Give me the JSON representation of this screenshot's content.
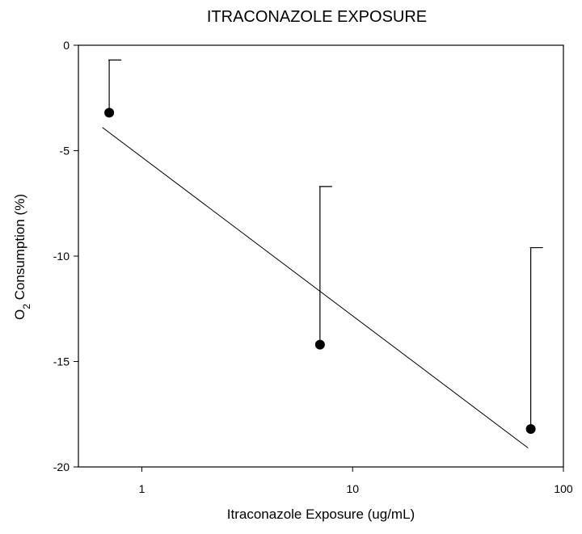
{
  "chart_data": {
    "type": "scatter",
    "title": "ITRACONAZOLE EXPOSURE",
    "xlabel": "Itraconazole Exposure (ug/mL)",
    "ylabel_main": "O",
    "ylabel_sub": "2",
    "ylabel_rest": " Consumption (%)",
    "x_scale": "log",
    "xlim": [
      0.5,
      100
    ],
    "ylim": [
      -20,
      0
    ],
    "x_ticks": [
      {
        "value": 1,
        "label": "1"
      },
      {
        "value": 10,
        "label": "10"
      },
      {
        "value": 100,
        "label": "100"
      }
    ],
    "y_ticks": [
      {
        "value": 0,
        "label": "0"
      },
      {
        "value": -5,
        "label": "-5"
      },
      {
        "value": -10,
        "label": "-10"
      },
      {
        "value": -15,
        "label": "-15"
      },
      {
        "value": -20,
        "label": "-20"
      }
    ],
    "grid": false,
    "points": [
      {
        "x": 0.7,
        "y": -3.2,
        "err_upper": -0.7
      },
      {
        "x": 7,
        "y": -14.2,
        "err_upper": -6.7
      },
      {
        "x": 70,
        "y": -18.2,
        "err_upper": -9.6
      }
    ],
    "fit_line": {
      "x": [
        0.65,
        68
      ],
      "y": [
        -3.9,
        -19.1
      ]
    }
  }
}
